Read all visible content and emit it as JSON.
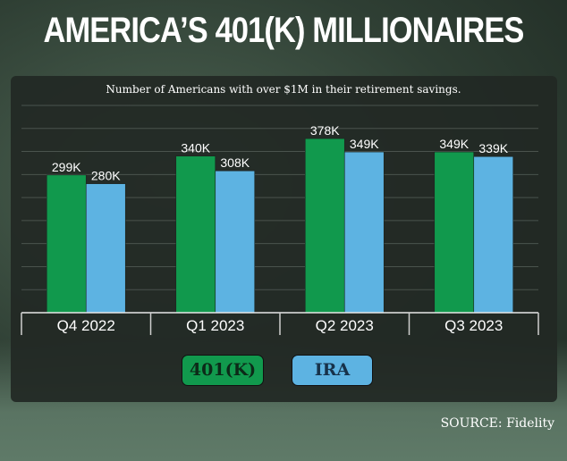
{
  "title": "AMERICA’S 401(K) MILLIONAIRES",
  "source": "SOURCE: Fidelity",
  "colors": {
    "401k": "#11994d",
    "ira": "#5db3e2"
  },
  "chart_data": {
    "type": "bar",
    "title": "AMERICA’S 401(K) MILLIONAIRES",
    "subtitle": "Number of Americans with over $1M in their retirement savings.",
    "categories": [
      "Q4 2022",
      "Q1 2023",
      "Q2 2023",
      "Q3 2023"
    ],
    "series": [
      {
        "name": "401(K)",
        "values": [
          299,
          340,
          378,
          349
        ],
        "labels": [
          "299K",
          "340K",
          "378K",
          "349K"
        ]
      },
      {
        "name": "IRA",
        "values": [
          280,
          308,
          349,
          339
        ],
        "labels": [
          "280K",
          "308K",
          "349K",
          "339K"
        ]
      }
    ],
    "unit": "thousands",
    "ylim": [
      0,
      450
    ],
    "grid": true,
    "legend": "bottom-left"
  }
}
